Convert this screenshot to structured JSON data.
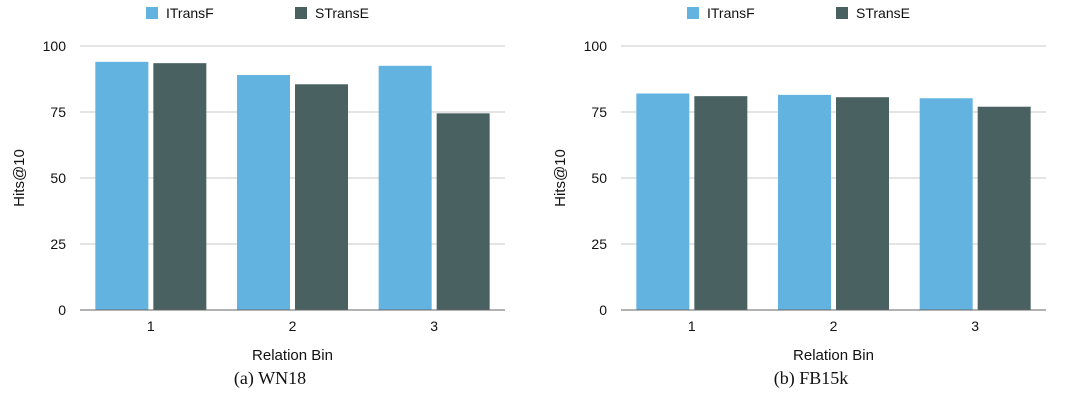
{
  "chart_data": [
    {
      "type": "bar",
      "caption": "(a) WN18",
      "categories": [
        "1",
        "2",
        "3"
      ],
      "series": [
        {
          "name": "ITransF",
          "values": [
            94,
            89,
            92.5
          ],
          "color": "#62b3e0"
        },
        {
          "name": "STransE",
          "values": [
            93.5,
            85.5,
            74.5
          ],
          "color": "#4a6162"
        }
      ],
      "xlabel": "Relation Bin",
      "ylabel": "Hits@10",
      "ylim": [
        0,
        100
      ],
      "yticks": [
        0,
        25,
        50,
        75,
        100
      ],
      "grid": true,
      "legend": "top"
    },
    {
      "type": "bar",
      "caption": "(b) FB15k",
      "categories": [
        "1",
        "2",
        "3"
      ],
      "series": [
        {
          "name": "ITransF",
          "values": [
            82,
            81.5,
            80.2
          ],
          "color": "#62b3e0"
        },
        {
          "name": "STransE",
          "values": [
            81,
            80.6,
            77
          ],
          "color": "#4a6162"
        }
      ],
      "xlabel": "Relation Bin",
      "ylabel": "Hits@10",
      "ylim": [
        0,
        100
      ],
      "yticks": [
        0,
        25,
        50,
        75,
        100
      ],
      "grid": true,
      "legend": "top"
    }
  ]
}
